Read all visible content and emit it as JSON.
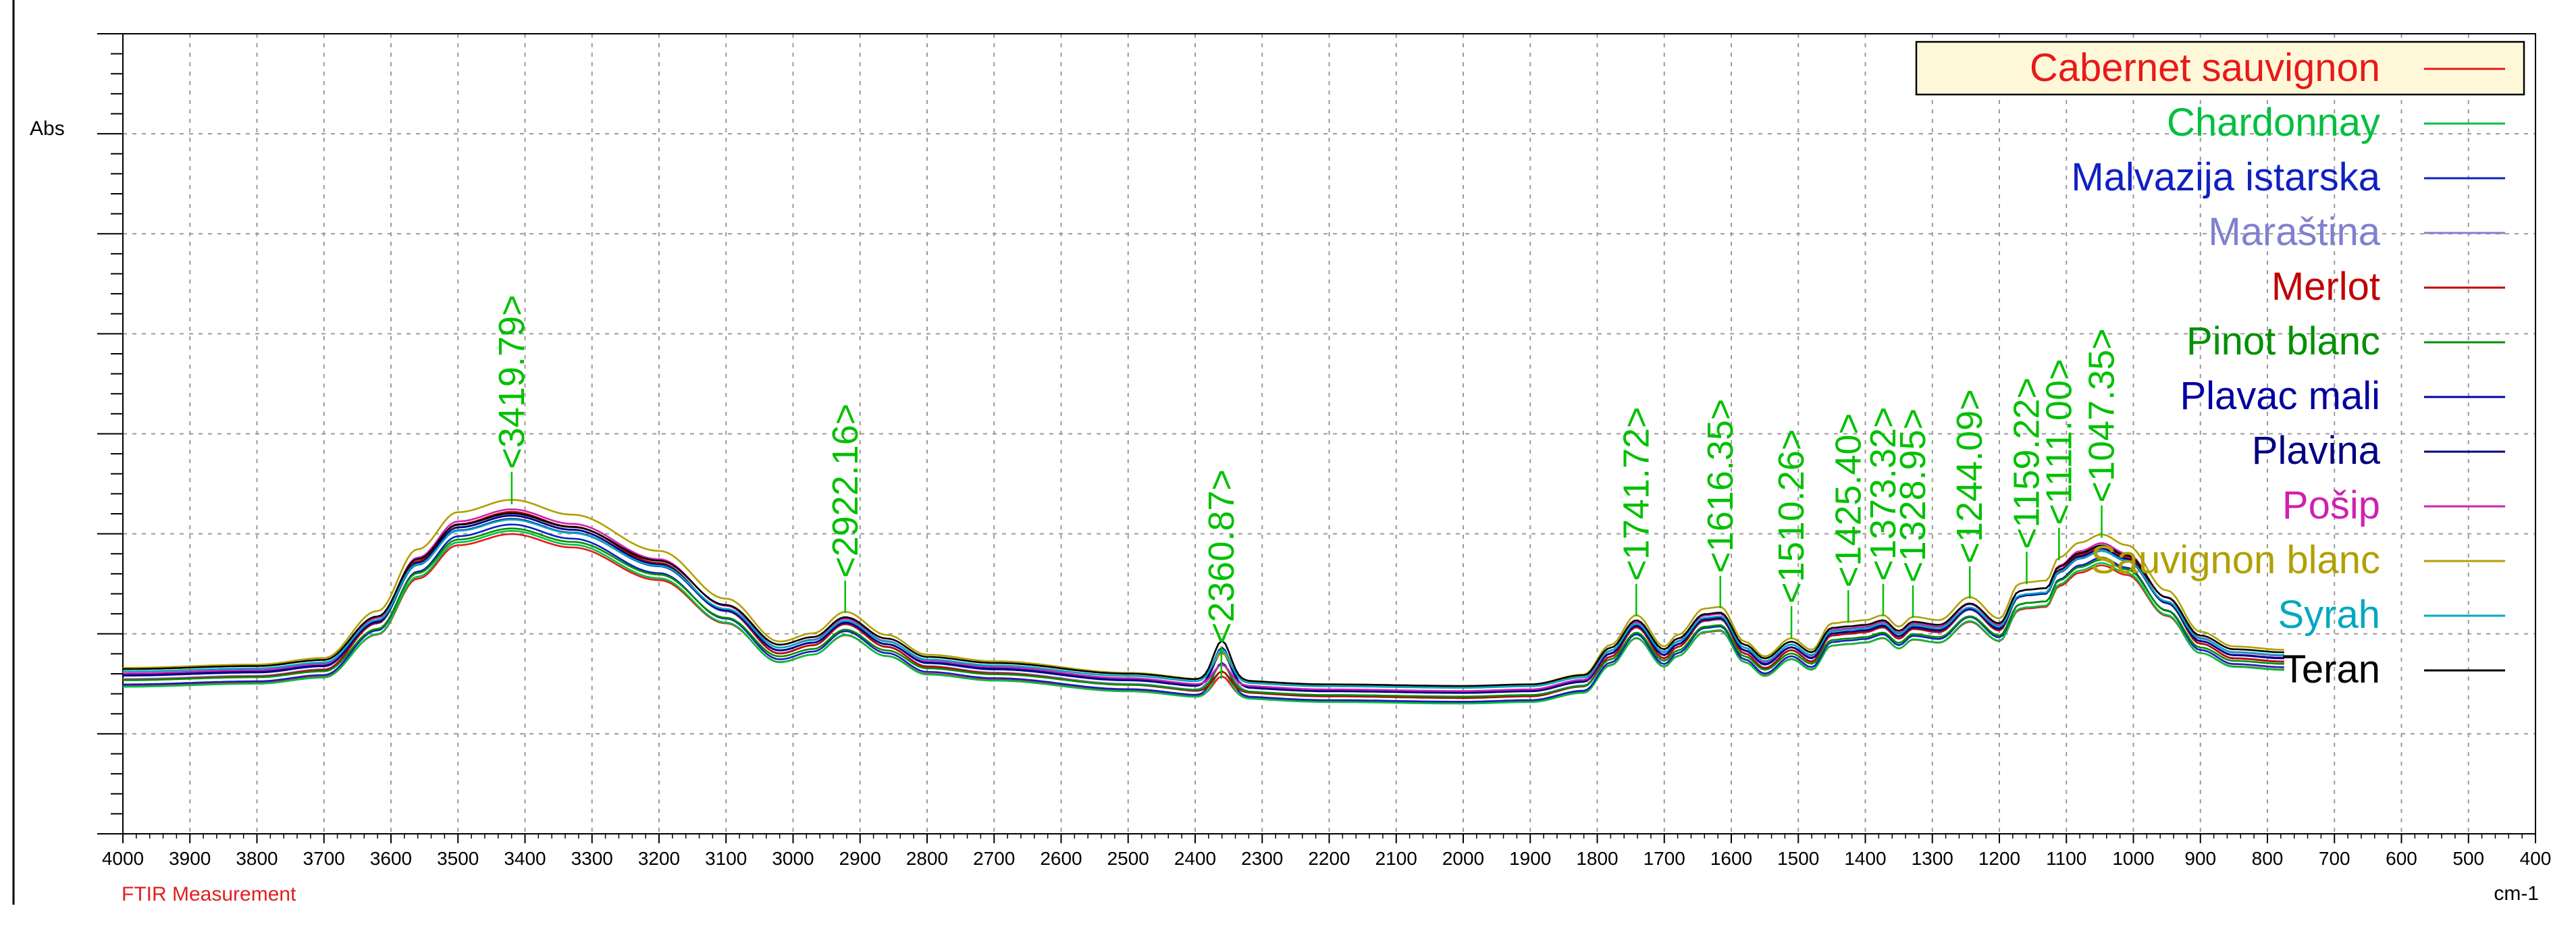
{
  "chart_data": {
    "type": "line",
    "title": "",
    "xlabel": "cm-1",
    "ylabel": "Abs",
    "footer": "FTIR Measurement",
    "x_range": [
      4000,
      400
    ],
    "x_reversed": true,
    "xticks": [
      "4000",
      "3900",
      "3800",
      "3700",
      "3600",
      "3500",
      "3400",
      "3300",
      "3200",
      "3100",
      "3000",
      "2900",
      "2800",
      "2700",
      "2600",
      "2500",
      "2400",
      "2300",
      "2200",
      "2100",
      "2000",
      "1900",
      "1800",
      "1700",
      "1600",
      "1500",
      "1400",
      "1300",
      "1200",
      "1100",
      "1000",
      "900",
      "800",
      "700",
      "600",
      "500",
      "400"
    ],
    "grid": true,
    "legend_position": "top-right",
    "peak_color": "#00c000",
    "peaks": [
      {
        "x": 3419.79,
        "label": "<3419.79>"
      },
      {
        "x": 2922.16,
        "label": "<2922.16>"
      },
      {
        "x": 2360.87,
        "label": "<2360.87>"
      },
      {
        "x": 1741.72,
        "label": "<1741.72>"
      },
      {
        "x": 1616.35,
        "label": "<1616.35>"
      },
      {
        "x": 1510.26,
        "label": "<1510.26>"
      },
      {
        "x": 1425.4,
        "label": "<1425.40>"
      },
      {
        "x": 1373.32,
        "label": "<1373.32>"
      },
      {
        "x": 1328.95,
        "label": "<1328.95>"
      },
      {
        "x": 1244.09,
        "label": "<1244.09>"
      },
      {
        "x": 1159.22,
        "label": "<1159.22>"
      },
      {
        "x": 1111.0,
        "label": "<1111.00>"
      },
      {
        "x": 1047.35,
        "label": "<1047.35>"
      }
    ],
    "series": [
      {
        "name": "Cabernet sauvignon",
        "color": "#e8191c"
      },
      {
        "name": "Chardonnay",
        "color": "#00c040"
      },
      {
        "name": "Malvazija istarska",
        "color": "#1020c0"
      },
      {
        "name": "Maraština",
        "color": "#8080d0"
      },
      {
        "name": "Merlot",
        "color": "#c00000"
      },
      {
        "name": "Pinot blanc",
        "color": "#009000"
      },
      {
        "name": "Plavac mali",
        "color": "#0000a0"
      },
      {
        "name": "Plavina",
        "color": "#000080"
      },
      {
        "name": "Pošip",
        "color": "#d020b0"
      },
      {
        "name": "Sauvignon blanc",
        "color": "#b0a000"
      },
      {
        "name": "Syrah",
        "color": "#00a8c0"
      },
      {
        "name": "Teran",
        "color": "#000000"
      }
    ]
  }
}
